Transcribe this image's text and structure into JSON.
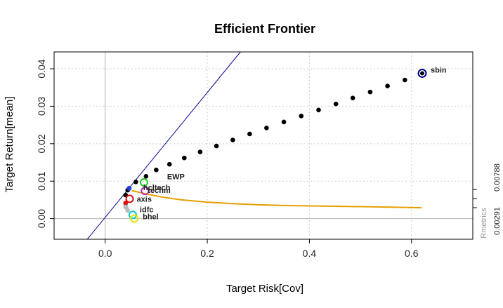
{
  "chart_data": {
    "type": "scatter",
    "title": "Efficient Frontier",
    "xlabel": "Target Risk[Cov]",
    "ylabel": "Target Return[mean]",
    "xlim": [
      -0.1,
      0.72
    ],
    "ylim": [
      -0.0055,
      0.0445
    ],
    "xticks": [
      "0.0",
      "0.2",
      "0.4",
      "0.6"
    ],
    "xtick_values": [
      0.0,
      0.2,
      0.4,
      0.6
    ],
    "yticks": [
      "0.00",
      "0.01",
      "0.02",
      "0.03",
      "0.04"
    ],
    "ytick_values": [
      0.0,
      0.01,
      0.02,
      0.03,
      0.04
    ],
    "grid": true,
    "right_axis": {
      "label": "Rmetrics",
      "tick_labels": [
        "0.00291",
        "0.00788"
      ]
    },
    "frontier_points": [
      {
        "x": 0.04,
        "y": 0.0063
      },
      {
        "x": 0.044,
        "y": 0.0076
      },
      {
        "x": 0.06,
        "y": 0.0098
      },
      {
        "x": 0.08,
        "y": 0.0113
      },
      {
        "x": 0.1,
        "y": 0.013
      },
      {
        "x": 0.126,
        "y": 0.0145
      },
      {
        "x": 0.155,
        "y": 0.0162
      },
      {
        "x": 0.186,
        "y": 0.0178
      },
      {
        "x": 0.218,
        "y": 0.0194
      },
      {
        "x": 0.25,
        "y": 0.021
      },
      {
        "x": 0.283,
        "y": 0.0226
      },
      {
        "x": 0.316,
        "y": 0.0242
      },
      {
        "x": 0.35,
        "y": 0.0258
      },
      {
        "x": 0.384,
        "y": 0.0274
      },
      {
        "x": 0.418,
        "y": 0.029
      },
      {
        "x": 0.452,
        "y": 0.0306
      },
      {
        "x": 0.485,
        "y": 0.0322
      },
      {
        "x": 0.519,
        "y": 0.0338
      },
      {
        "x": 0.553,
        "y": 0.0354
      },
      {
        "x": 0.587,
        "y": 0.037
      }
    ],
    "lower_frontier_points": [
      {
        "x": 0.04,
        "y": 0.0038
      },
      {
        "x": 0.041,
        "y": 0.003
      }
    ],
    "capital_market_line": {
      "x": [
        -0.035,
        0.265
      ],
      "y": [
        -0.0055,
        0.0445
      ],
      "color": "#00008b"
    },
    "sharpe_ratio_line": {
      "x": [
        0.052,
        0.08,
        0.11,
        0.15,
        0.2,
        0.25,
        0.3,
        0.35,
        0.4,
        0.45,
        0.5,
        0.55,
        0.62
      ],
      "y": [
        0.0075,
        0.0066,
        0.0058,
        0.005,
        0.0044,
        0.004,
        0.0037,
        0.0035,
        0.0034,
        0.0033,
        0.0032,
        0.0031,
        0.0029
      ],
      "color": "#e69f00"
    },
    "tangency_point": {
      "x": 0.047,
      "y": 0.0081,
      "color": "#1f3fd6"
    },
    "assets": [
      {
        "name": "sbin",
        "x": 0.621,
        "y": 0.0388,
        "color": "#00008b"
      },
      {
        "name": "EWP",
        "x": 0.08,
        "y": 0.0111,
        "color": "#000000"
      },
      {
        "name": "hcltech",
        "x": 0.076,
        "y": 0.0097,
        "color": "#22cc22"
      },
      {
        "name": "techm",
        "x": 0.078,
        "y": 0.0074,
        "color": "#b030b0"
      },
      {
        "name": "axis",
        "x": 0.048,
        "y": 0.0053,
        "color": "#dd1111"
      },
      {
        "name": "idfc",
        "x": 0.054,
        "y": 0.001,
        "color": "#00cccc"
      },
      {
        "name": "bhel",
        "x": 0.057,
        "y": 0.0,
        "color": "#e6e600"
      }
    ],
    "extra_points": [
      {
        "x": 0.04,
        "y": 0.0042,
        "color": "#dd1111"
      },
      {
        "x": 0.04,
        "y": 0.0031,
        "color": "#bbbbbb"
      },
      {
        "x": 0.044,
        "y": 0.0022,
        "color": "#bbbbbb"
      }
    ]
  }
}
